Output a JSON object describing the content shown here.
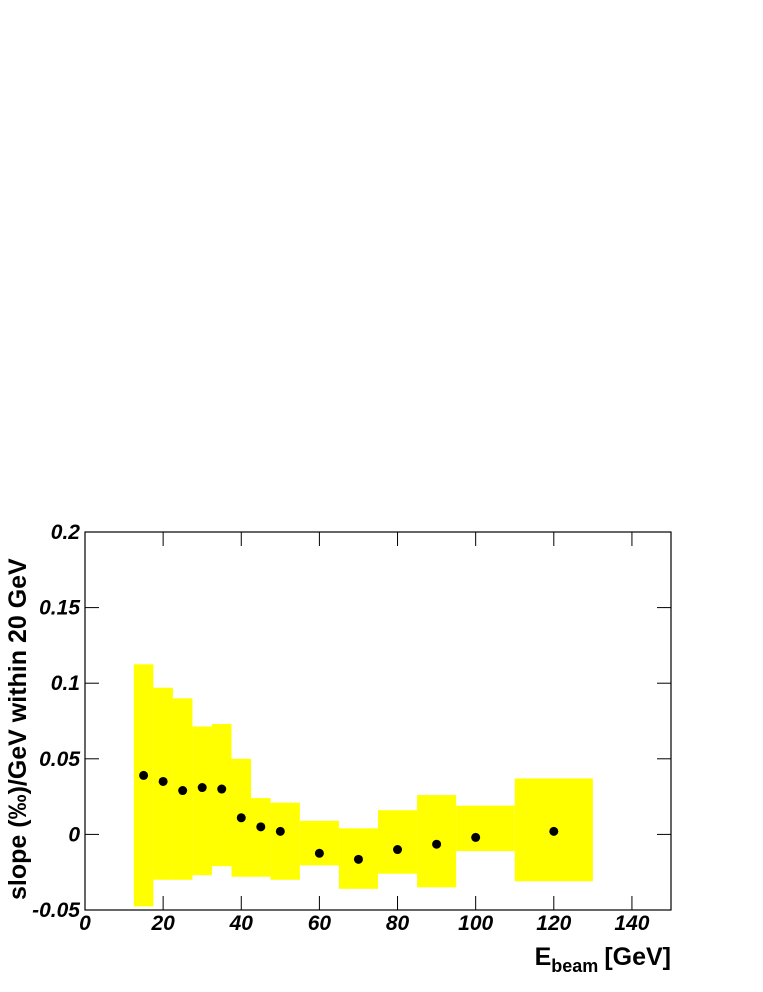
{
  "chart_data": {
    "type": "scatter",
    "xlabel": "E",
    "xlabel_sub": "beam",
    "xlabel_unit": "[GeV]",
    "ylabel": "slope (‰)/GeV within 20 GeV",
    "x": [
      15,
      20,
      25,
      30,
      35,
      40,
      45,
      50,
      60,
      70,
      80,
      90,
      100,
      120
    ],
    "values": [
      0.039,
      0.035,
      0.029,
      0.031,
      0.03,
      0.011,
      0.005,
      0.002,
      -0.0125,
      -0.0165,
      -0.01,
      -0.0065,
      -0.002,
      0.002
    ],
    "color": "#000000",
    "bands": {
      "color": "#ffff00",
      "x_low": [
        12.5,
        17.5,
        22.5,
        27.5,
        32.5,
        37.5,
        42.5,
        47.5,
        55,
        65,
        75,
        85,
        95,
        110
      ],
      "x_high": [
        17.5,
        22.5,
        27.5,
        32.5,
        37.5,
        42.5,
        47.5,
        55,
        65,
        75,
        85,
        95,
        110,
        130
      ],
      "low": [
        -0.0476,
        -0.03,
        -0.03,
        -0.027,
        -0.021,
        -0.028,
        -0.028,
        -0.03,
        -0.0205,
        -0.036,
        -0.026,
        -0.035,
        -0.011,
        -0.031
      ],
      "high": [
        0.1125,
        0.097,
        0.09,
        0.0714,
        0.073,
        0.05,
        0.024,
        0.021,
        0.009,
        0.004,
        0.016,
        0.026,
        0.019,
        0.037
      ]
    },
    "xlim": [
      0,
      150
    ],
    "xticks": [
      0,
      20,
      40,
      60,
      80,
      100,
      120,
      140
    ],
    "ylim": [
      -0.05,
      0.2
    ],
    "yticks": [
      -0.05,
      0,
      0.05,
      0.1,
      0.15,
      0.2
    ]
  }
}
